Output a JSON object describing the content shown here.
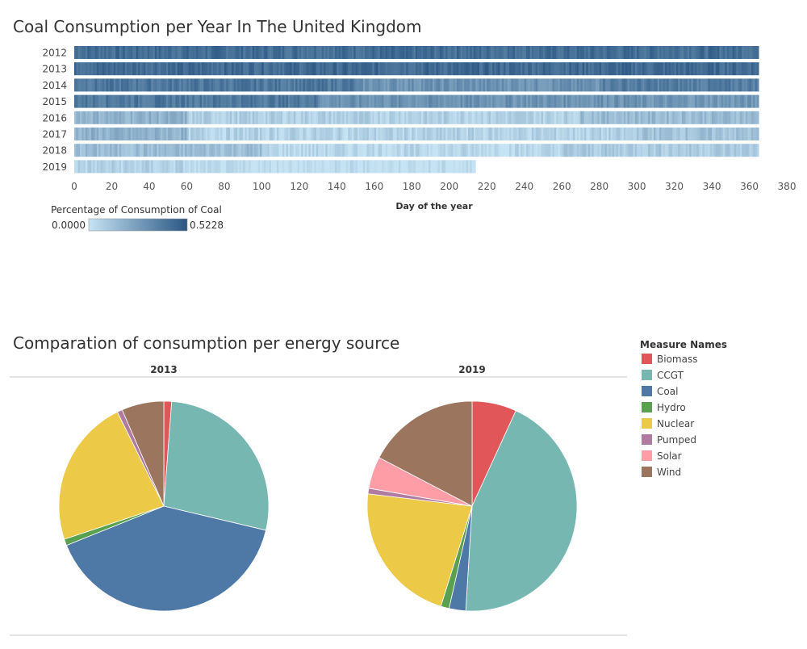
{
  "heatmap": {
    "title": "Coal Consumption per Year In The United Kingdom",
    "xlabel": "Day of the year",
    "years": [
      "2012",
      "2013",
      "2014",
      "2015",
      "2016",
      "2017",
      "2018",
      "2019"
    ],
    "days_covered": [
      365,
      365,
      365,
      365,
      365,
      365,
      365,
      214
    ],
    "x_ticks": [
      "0",
      "20",
      "40",
      "60",
      "80",
      "100",
      "120",
      "140",
      "160",
      "180",
      "200",
      "220",
      "240",
      "260",
      "280",
      "300",
      "320",
      "340",
      "360",
      "380"
    ],
    "xlim": [
      0,
      380
    ],
    "legend_title": "Percentage of Consumption of Coal",
    "legend_min": "0.0000",
    "legend_max": "0.5228",
    "color_low": "#c6e3f3",
    "color_high": "#2a5783"
  },
  "pies": {
    "title": "Comparation of consumption per energy source",
    "legend_title": "Measure Names",
    "panels": [
      "2013",
      "2019"
    ]
  },
  "chart_data": [
    {
      "type": "heatmap",
      "title": "Coal Consumption per Year In The United Kingdom",
      "xlabel": "Day of the year",
      "ylabel": "",
      "y_categories": [
        "2012",
        "2013",
        "2014",
        "2015",
        "2016",
        "2017",
        "2018",
        "2019"
      ],
      "xlim": [
        0,
        380
      ],
      "value_range": [
        0.0,
        0.5228
      ],
      "approx_mean_intensity_by_year": [
        {
          "year": "2012",
          "days": 365,
          "segments": [
            [
              0,
              365,
              0.44
            ]
          ]
        },
        {
          "year": "2013",
          "days": 365,
          "segments": [
            [
              0,
              365,
              0.45
            ]
          ]
        },
        {
          "year": "2014",
          "days": 365,
          "segments": [
            [
              0,
              150,
              0.4
            ],
            [
              150,
              280,
              0.3
            ],
            [
              280,
              365,
              0.38
            ]
          ]
        },
        {
          "year": "2015",
          "days": 365,
          "segments": [
            [
              0,
              130,
              0.4
            ],
            [
              130,
              300,
              0.3
            ],
            [
              300,
              365,
              0.28
            ]
          ]
        },
        {
          "year": "2016",
          "days": 365,
          "segments": [
            [
              0,
              60,
              0.18
            ],
            [
              60,
              270,
              0.07
            ],
            [
              270,
              365,
              0.15
            ]
          ]
        },
        {
          "year": "2017",
          "days": 365,
          "segments": [
            [
              0,
              60,
              0.18
            ],
            [
              60,
              300,
              0.06
            ],
            [
              300,
              365,
              0.12
            ]
          ]
        },
        {
          "year": "2018",
          "days": 365,
          "segments": [
            [
              0,
              100,
              0.14
            ],
            [
              100,
              260,
              0.04
            ],
            [
              260,
              365,
              0.09
            ]
          ]
        },
        {
          "year": "2019",
          "days": 214,
          "segments": [
            [
              0,
              60,
              0.06
            ],
            [
              60,
              214,
              0.01
            ]
          ]
        }
      ]
    },
    {
      "type": "pie",
      "title": "2013",
      "categories": [
        "Biomass",
        "CCGT",
        "Coal",
        "Hydro",
        "Nuclear",
        "Pumped",
        "Solar",
        "Wind"
      ],
      "values": [
        1.2,
        27.5,
        40.2,
        1.0,
        22.8,
        0.8,
        0.0,
        6.5
      ],
      "start_order": [
        "Biomass",
        "CCGT",
        "Coal",
        "Hydro",
        "Nuclear",
        "Pumped",
        "Solar",
        "Wind"
      ]
    },
    {
      "type": "pie",
      "title": "2019",
      "categories": [
        "Biomass",
        "CCGT",
        "Coal",
        "Hydro",
        "Nuclear",
        "Pumped",
        "Solar",
        "Wind"
      ],
      "values": [
        6.4,
        41.2,
        2.4,
        1.2,
        20.6,
        0.8,
        4.6,
        16.2
      ],
      "start_order": [
        "Biomass",
        "CCGT",
        "Coal",
        "Hydro",
        "Nuclear",
        "Pumped",
        "Solar",
        "Wind"
      ]
    }
  ],
  "legend": [
    {
      "name": "Biomass",
      "color": "#e15759"
    },
    {
      "name": "CCGT",
      "color": "#76b7b2"
    },
    {
      "name": "Coal",
      "color": "#4e79a7"
    },
    {
      "name": "Hydro",
      "color": "#59a14f"
    },
    {
      "name": "Nuclear",
      "color": "#edc948"
    },
    {
      "name": "Pumped",
      "color": "#b07aa1"
    },
    {
      "name": "Solar",
      "color": "#ff9da7"
    },
    {
      "name": "Wind",
      "color": "#9c755f"
    }
  ]
}
